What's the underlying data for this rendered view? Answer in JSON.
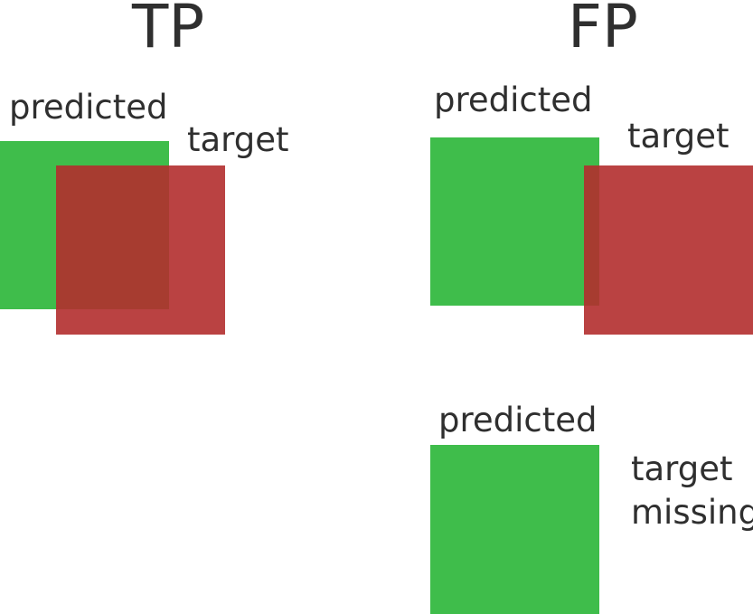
{
  "colors": {
    "predicted_box": "#3fbd4b",
    "target_box": "#b22e2e",
    "text": "#2f2f2f"
  },
  "tp": {
    "heading": "TP",
    "predicted_label": "predicted",
    "target_label": "target"
  },
  "fp_overlap": {
    "heading": "FP",
    "predicted_label": "predicted",
    "target_label": "target"
  },
  "fp_missing": {
    "predicted_label": "predicted",
    "target_label_line1": "target",
    "target_label_line2": "missing"
  }
}
